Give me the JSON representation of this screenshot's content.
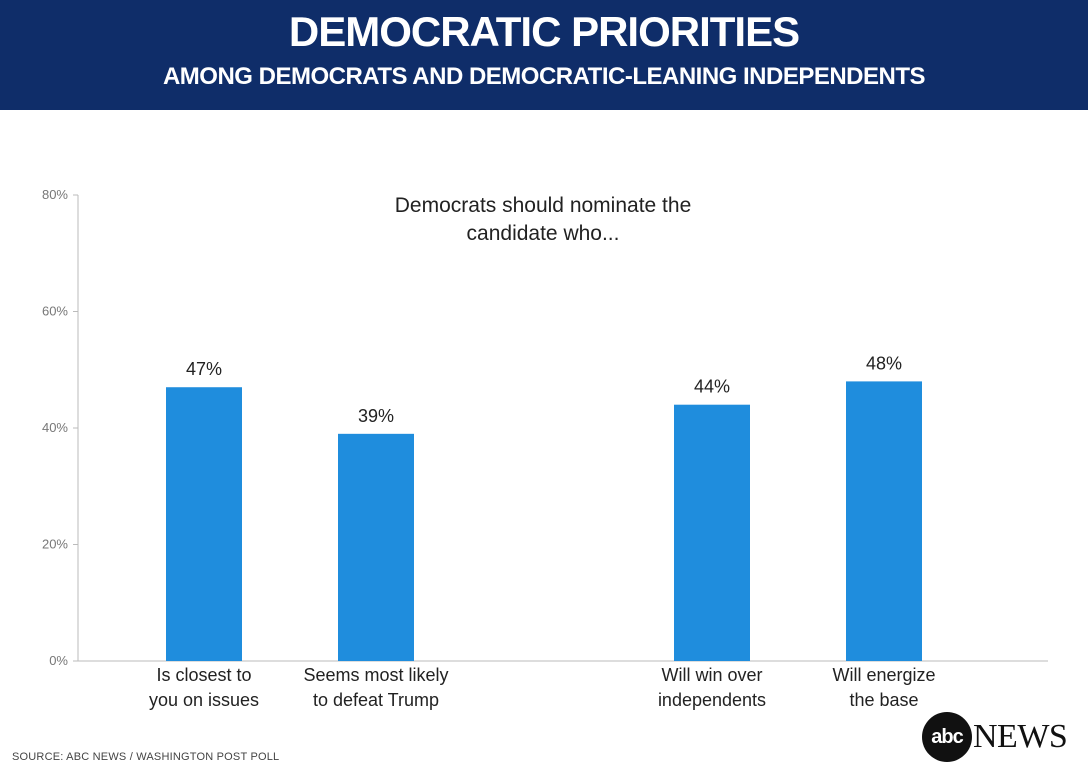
{
  "header": {
    "title": "DEMOCRATIC PRIORITIES",
    "subtitle": "AMONG DEMOCRATS AND DEMOCRATIC-LEANING INDEPENDENTS"
  },
  "source": "SOURCE: ABC NEWS / WASHINGTON POST POLL",
  "logo": {
    "mark": "abc",
    "word": "NEWS"
  },
  "chart_data": {
    "type": "bar",
    "annotation": [
      "Democrats should nominate the",
      "candidate who..."
    ],
    "categories": [
      [
        "Is closest  to",
        "you on issues"
      ],
      [
        "Seems most likely",
        "to defeat Trump"
      ],
      [
        "Will win over",
        "independents"
      ],
      [
        "Will energize",
        "the base"
      ]
    ],
    "values": [
      47,
      39,
      44,
      48
    ],
    "value_labels": [
      "47%",
      "39%",
      "44%",
      "48%"
    ],
    "ylim": [
      0,
      80
    ],
    "yticks": [
      0,
      20,
      40,
      60,
      80
    ],
    "ytick_labels": [
      "0%",
      "20%",
      "40%",
      "60%",
      "80%"
    ],
    "bar_color": "#1f8ddd",
    "grid": false
  }
}
